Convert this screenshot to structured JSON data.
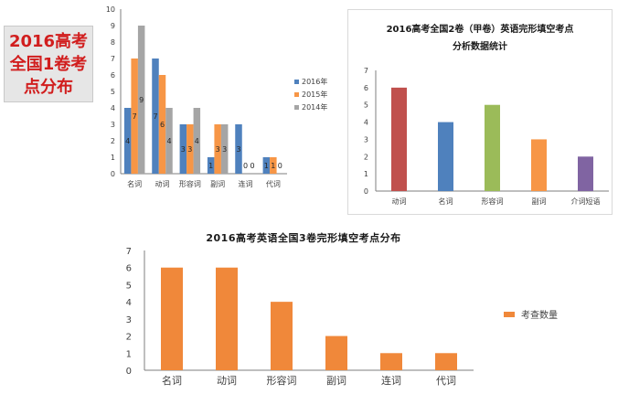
{
  "side_label": "2016高考\n全国1卷考\n点分布",
  "chart_data": [
    {
      "type": "bar",
      "title": "",
      "categories": [
        "名词",
        "动词",
        "形容词",
        "副词",
        "连词",
        "代词"
      ],
      "series": [
        {
          "name": "2016年",
          "values": [
            4,
            7,
            3,
            1,
            3,
            1
          ],
          "color": "#4f81bd"
        },
        {
          "name": "2015年",
          "values": [
            7,
            6,
            3,
            3,
            0,
            1
          ],
          "color": "#f79646"
        },
        {
          "name": "2014年",
          "values": [
            9,
            4,
            4,
            3,
            0,
            0
          ],
          "color": "#a5a5a5"
        }
      ],
      "ylim": [
        0,
        10
      ],
      "yticks": [
        0,
        1,
        2,
        3,
        4,
        5,
        6,
        7,
        8,
        9,
        10
      ],
      "legend": "right",
      "grid": false
    },
    {
      "type": "bar",
      "title": "2016高考全国2卷（甲卷）英语完形填空考点\n分析数据统计",
      "categories": [
        "动词",
        "名词",
        "形容词",
        "副词",
        "介词短语"
      ],
      "values": [
        6,
        4,
        5,
        3,
        2
      ],
      "colors": [
        "#c0504d",
        "#4f81bd",
        "#9bbb59",
        "#f79646",
        "#8064a2"
      ],
      "ylim": [
        0,
        7
      ],
      "yticks": [
        0,
        1,
        2,
        3,
        4,
        5,
        6,
        7
      ],
      "grid": false
    },
    {
      "type": "bar",
      "title": "2016高考英语全国3卷完形填空考点分布",
      "categories": [
        "名词",
        "动词",
        "形容词",
        "副词",
        "连词",
        "代词"
      ],
      "series": [
        {
          "name": "考查数量",
          "values": [
            6,
            6,
            4,
            2,
            1,
            1
          ],
          "color": "#f0883a"
        }
      ],
      "ylim": [
        0,
        7
      ],
      "yticks": [
        0,
        1,
        2,
        3,
        4,
        5,
        6,
        7
      ],
      "legend": "right",
      "grid": false
    }
  ]
}
